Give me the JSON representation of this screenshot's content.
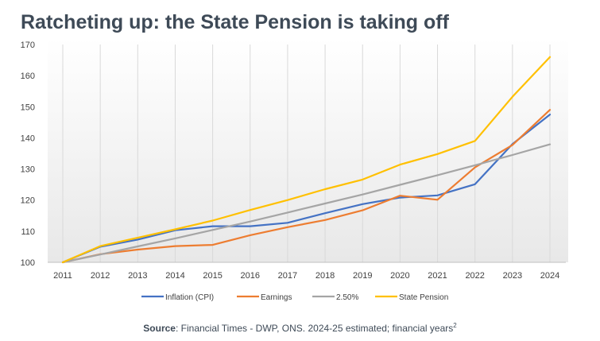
{
  "title": "Ratcheting up: the State Pension is taking off",
  "source": {
    "label": "Source",
    "text": ": Financial Times - DWP, ONS. 2024-25 estimated; financial years",
    "footnote": "2"
  },
  "chart_data": {
    "type": "line",
    "title": "Ratcheting up: the State Pension is taking off",
    "xlabel": "",
    "ylabel": "",
    "x": [
      "2011",
      "2012",
      "2013",
      "2014",
      "2015",
      "2016",
      "2017",
      "2018",
      "2019",
      "2020",
      "2021",
      "2022",
      "2023",
      "2024"
    ],
    "ylim": [
      100,
      170
    ],
    "yticks": [
      "100",
      "110",
      "120",
      "130",
      "140",
      "150",
      "160",
      "170"
    ],
    "grid": "vertical",
    "legend_position": "bottom",
    "series": [
      {
        "name": "Inflation (CPI)",
        "color": "#4472c4",
        "values": [
          100,
          105.0,
          107.3,
          110.3,
          111.6,
          111.6,
          112.7,
          115.8,
          118.7,
          120.8,
          121.5,
          125.1,
          138.0,
          147.5
        ]
      },
      {
        "name": "Earnings",
        "color": "#ed7d31",
        "values": [
          100,
          102.6,
          104.1,
          105.2,
          105.6,
          108.7,
          111.3,
          113.6,
          116.7,
          121.4,
          120.1,
          130.5,
          137.7,
          149.0
        ]
      },
      {
        "name": "2.50%",
        "color": "#a5a5a5",
        "values": [
          100,
          102.5,
          105.1,
          107.7,
          110.4,
          113.1,
          116.0,
          118.9,
          121.8,
          124.9,
          128.0,
          131.2,
          134.5,
          137.9
        ]
      },
      {
        "name": "State Pension",
        "color": "#ffc000",
        "values": [
          100,
          105.2,
          107.9,
          110.6,
          113.4,
          116.8,
          120.0,
          123.5,
          126.6,
          131.4,
          134.8,
          139.0,
          153.2,
          166.0
        ]
      }
    ]
  }
}
